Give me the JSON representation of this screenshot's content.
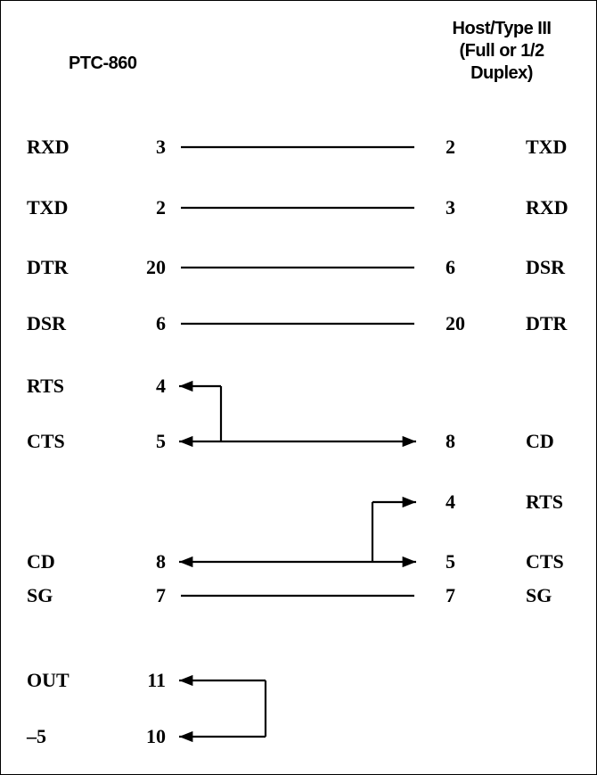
{
  "left_header": "PTC-860",
  "right_header_lines": [
    "Host/Type III",
    "(Full or 1/2",
    "Duplex)"
  ],
  "rows": [
    {
      "left_signal": "RXD",
      "left_pin": "3",
      "right_pin": "2",
      "right_signal": "TXD"
    },
    {
      "left_signal": "TXD",
      "left_pin": "2",
      "right_pin": "3",
      "right_signal": "RXD"
    },
    {
      "left_signal": "DTR",
      "left_pin": "20",
      "right_pin": "6",
      "right_signal": "DSR"
    },
    {
      "left_signal": "DSR",
      "left_pin": "6",
      "right_pin": "20",
      "right_signal": "DTR"
    },
    {
      "left_signal": "RTS",
      "left_pin": "4",
      "right_pin": "",
      "right_signal": ""
    },
    {
      "left_signal": "CTS",
      "left_pin": "5",
      "right_pin": "8",
      "right_signal": "CD"
    },
    {
      "left_signal": "",
      "left_pin": "",
      "right_pin": "4",
      "right_signal": "RTS"
    },
    {
      "left_signal": "CD",
      "left_pin": "8",
      "right_pin": "5",
      "right_signal": "CTS"
    },
    {
      "left_signal": "SG",
      "left_pin": "7",
      "right_pin": "7",
      "right_signal": "SG"
    },
    {
      "left_signal": "OUT",
      "left_pin": "11",
      "right_pin": "",
      "right_signal": ""
    },
    {
      "left_signal": "–5",
      "left_pin": "10",
      "right_pin": "",
      "right_signal": ""
    }
  ]
}
